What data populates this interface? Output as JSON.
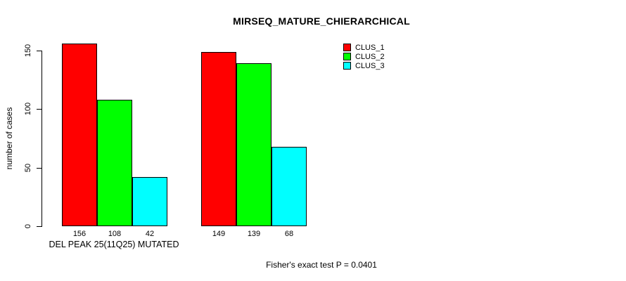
{
  "chart_data": {
    "type": "bar",
    "title": "MIRSEQ_MATURE_CHIERARCHICAL",
    "ylabel": "number of cases",
    "xlabel": "DEL PEAK 25(11Q25) MUTATED",
    "ylim": [
      0,
      150
    ],
    "yticks": [
      0,
      50,
      100,
      150
    ],
    "grid": false,
    "legend_position": "top-right",
    "bar_colors": {
      "red": "#ff0000",
      "green": "#00ff00",
      "cyan": "#00ffff"
    },
    "series": [
      {
        "name": "CLUS_1",
        "color": "#ff0000"
      },
      {
        "name": "CLUS_2",
        "color": "#00ff00"
      },
      {
        "name": "CLUS_3",
        "color": "#00ffff"
      }
    ],
    "groups": [
      {
        "label": "DEL PEAK 25(11Q25) MUTATED",
        "values": [
          156,
          108,
          42
        ]
      },
      {
        "label": "",
        "values": [
          149,
          139,
          68
        ]
      }
    ],
    "bar_value_labels": [
      [
        "156",
        "108",
        "42"
      ],
      [
        "149",
        "139",
        "68"
      ]
    ],
    "annotation": "Fisher's exact test P = 0.0401"
  }
}
